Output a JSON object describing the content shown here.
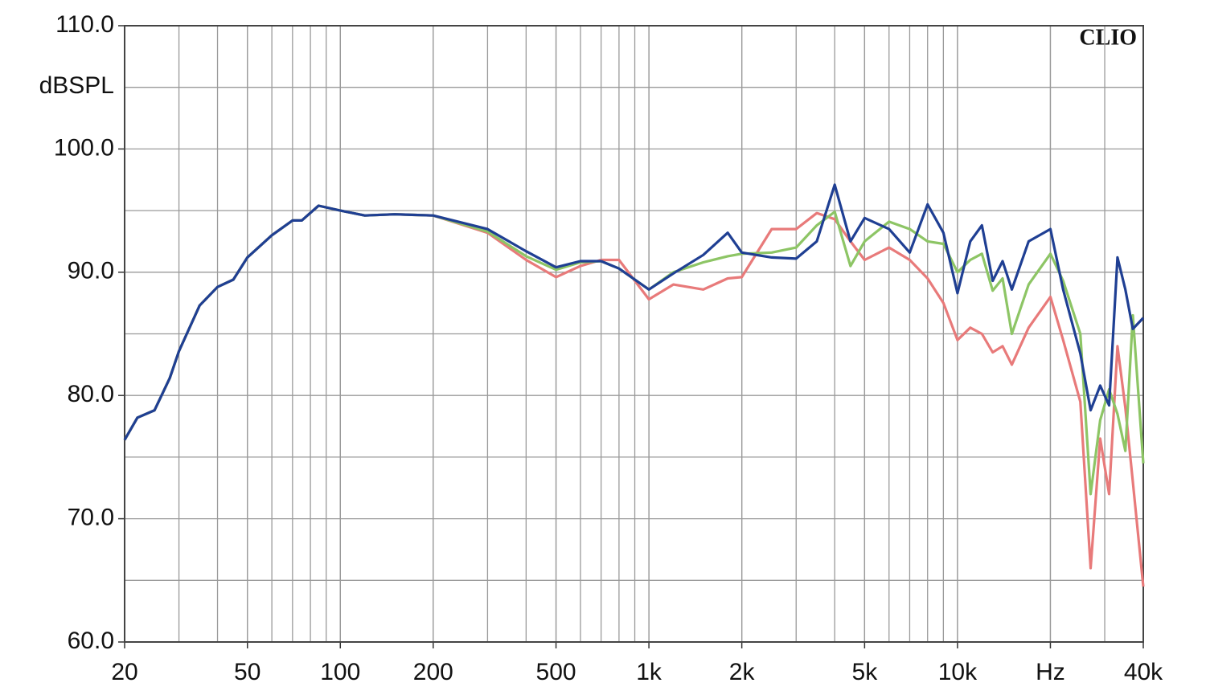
{
  "chart_data": {
    "type": "line",
    "y_label": "dBSPL",
    "annotation": "CLIO",
    "log_x": true,
    "grid": true,
    "x": [
      20,
      22,
      25,
      28,
      30,
      35,
      40,
      45,
      50,
      60,
      70,
      75,
      85,
      100,
      120,
      150,
      200,
      300,
      400,
      500,
      600,
      700,
      800,
      1000,
      1200,
      1500,
      1800,
      2000,
      2500,
      3000,
      3500,
      4000,
      4500,
      5000,
      6000,
      7000,
      8000,
      9000,
      10000,
      11000,
      12000,
      13000,
      14000,
      15000,
      17000,
      20000,
      22000,
      25000,
      27000,
      29000,
      31000,
      33000,
      35000,
      37000,
      40000
    ],
    "series": [
      {
        "color": "#e87a7a",
        "values": [
          76.4,
          78.2,
          78.8,
          81.4,
          83.6,
          87.3,
          88.8,
          89.4,
          91.2,
          93.0,
          94.2,
          94.2,
          95.4,
          95.0,
          94.6,
          94.7,
          94.6,
          93.2,
          91.0,
          89.6,
          90.5,
          91.0,
          91.0,
          87.8,
          89.0,
          88.6,
          89.5,
          89.6,
          93.5,
          93.5,
          94.8,
          94.3,
          92.5,
          91.0,
          92.0,
          91.0,
          89.5,
          87.5,
          84.5,
          85.5,
          85.0,
          83.5,
          84.0,
          82.5,
          85.5,
          88.0,
          84.5,
          79.5,
          66.0,
          76.5,
          72.0,
          84.0,
          79.0,
          73.0,
          64.5
        ]
      },
      {
        "color": "#8dc565",
        "values": [
          76.4,
          78.2,
          78.8,
          81.4,
          83.6,
          87.3,
          88.8,
          89.4,
          91.2,
          93.0,
          94.2,
          94.2,
          95.4,
          95.0,
          94.6,
          94.7,
          94.6,
          93.3,
          91.3,
          90.2,
          90.8,
          90.9,
          90.3,
          88.6,
          90.0,
          90.8,
          91.3,
          91.5,
          91.6,
          92.0,
          93.8,
          94.9,
          90.5,
          92.5,
          94.1,
          93.5,
          92.5,
          92.3,
          90.0,
          91.0,
          91.5,
          88.5,
          89.5,
          85.0,
          89.0,
          91.5,
          89.3,
          85.0,
          72.0,
          78.0,
          80.5,
          78.5,
          75.5,
          86.5,
          74.5
        ]
      },
      {
        "color": "#1f3f93",
        "values": [
          76.4,
          78.2,
          78.8,
          81.4,
          83.6,
          87.3,
          88.8,
          89.4,
          91.2,
          93.0,
          94.2,
          94.2,
          95.4,
          95.0,
          94.6,
          94.7,
          94.6,
          93.5,
          91.7,
          90.4,
          90.9,
          90.9,
          90.3,
          88.6,
          89.9,
          91.4,
          93.2,
          91.6,
          91.2,
          91.1,
          92.5,
          97.1,
          92.5,
          94.4,
          93.5,
          91.6,
          95.5,
          93.2,
          88.3,
          92.5,
          93.8,
          89.3,
          90.9,
          88.6,
          92.5,
          93.5,
          88.6,
          83.4,
          78.8,
          80.8,
          79.2,
          91.2,
          88.6,
          85.4,
          86.3
        ]
      }
    ],
    "xlim": [
      20,
      40000
    ],
    "xticks": [
      20,
      50,
      100,
      200,
      500,
      {
        "value": 1000,
        "label": "1k"
      },
      {
        "value": 2000,
        "label": "2k"
      },
      {
        "value": 5000,
        "label": "5k"
      },
      {
        "value": 10000,
        "label": "10k"
      },
      {
        "value": 20000,
        "label": "Hz"
      },
      {
        "value": 40000,
        "label": "40k"
      }
    ],
    "ylim": [
      60,
      110
    ],
    "yticks": [
      {
        "value": 60,
        "label": "60.0"
      },
      {
        "value": 70,
        "label": "70.0"
      },
      {
        "value": 80,
        "label": "80.0"
      },
      {
        "value": 90,
        "label": "90.0"
      },
      {
        "value": 100,
        "label": "100.0"
      },
      {
        "value": 110,
        "label": "110.0"
      }
    ]
  }
}
